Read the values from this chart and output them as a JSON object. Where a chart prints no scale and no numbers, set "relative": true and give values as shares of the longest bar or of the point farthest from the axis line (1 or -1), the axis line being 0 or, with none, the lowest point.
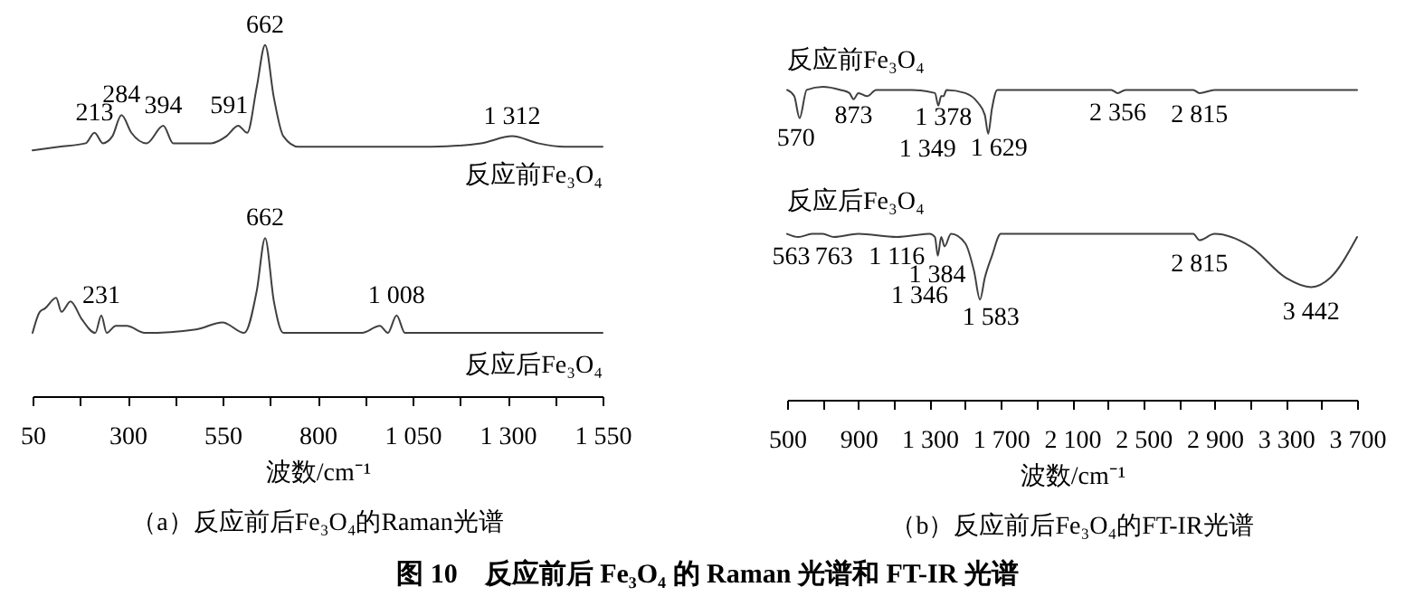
{
  "chart_data": [
    {
      "type": "line",
      "relative": true,
      "title": "（a）反应前后Fe₃O₄的Raman光谱",
      "xlabel": "波数/cm⁻¹",
      "xlim": [
        50,
        1550
      ],
      "xticks": [
        50,
        {
          "value": 175,
          "label": null
        },
        300,
        {
          "value": 425,
          "label": null
        },
        550,
        {
          "value": 675,
          "label": null
        },
        800,
        {
          "value": 925,
          "label": null
        },
        {
          "value": 1050,
          "label": "1 050"
        },
        {
          "value": 1175,
          "label": null
        },
        {
          "value": 1300,
          "label": "1 300"
        },
        {
          "value": 1425,
          "label": null
        },
        {
          "value": 1550,
          "label": "1 550"
        }
      ],
      "grid": false,
      "legend": false,
      "marker": "none",
      "line_style": "solid",
      "series": [
        {
          "name": "反应前Fe₃O₄",
          "color": "#404040",
          "x": [
            50,
            120,
            190,
            213,
            235,
            260,
            284,
            310,
            350,
            394,
            420,
            470,
            520,
            560,
            591,
            615,
            640,
            662,
            685,
            710,
            750,
            900,
            1100,
            1230,
            1312,
            1380,
            1450,
            1550
          ],
          "values": [
            0.7,
            0.71,
            0.72,
            0.75,
            0.72,
            0.74,
            0.8,
            0.75,
            0.72,
            0.77,
            0.72,
            0.72,
            0.72,
            0.74,
            0.77,
            0.75,
            0.88,
            1.0,
            0.85,
            0.74,
            0.71,
            0.71,
            0.71,
            0.72,
            0.74,
            0.72,
            0.71,
            0.71
          ]
        },
        {
          "name": "反应后Fe₃O₄",
          "color": "#404040",
          "x": [
            50,
            69,
            83,
            112,
            126,
            150,
            179,
            215,
            231,
            245,
            269,
            298,
            345,
            480,
            550,
            607,
            640,
            662,
            685,
            710,
            917,
            964,
            985,
            1008,
            1030,
            1200,
            1550
          ],
          "values": [
            0.18,
            0.24,
            0.25,
            0.28,
            0.24,
            0.27,
            0.22,
            0.18,
            0.23,
            0.18,
            0.2,
            0.2,
            0.18,
            0.19,
            0.21,
            0.18,
            0.3,
            0.45,
            0.27,
            0.18,
            0.18,
            0.2,
            0.18,
            0.23,
            0.18,
            0.18,
            0.18
          ]
        }
      ],
      "annotations": [
        {
          "text": "213",
          "x": 213,
          "y": 0.75
        },
        {
          "text": "284",
          "x": 284,
          "y": 0.8
        },
        {
          "text": "394",
          "x": 394,
          "y": 0.77
        },
        {
          "text": "591",
          "x": 591,
          "y": 0.77
        },
        {
          "text": "662",
          "x": 662,
          "y": 1.0
        },
        {
          "text": "1 312",
          "x": 1312,
          "y": 0.74
        },
        {
          "text": "231",
          "x": 231,
          "y": 0.23
        },
        {
          "text": "662",
          "x": 662,
          "y": 0.45
        },
        {
          "text": "1 008",
          "x": 1008,
          "y": 0.23
        }
      ]
    },
    {
      "type": "line",
      "relative": true,
      "title": "（b）反应前后Fe₃O₄的FT-IR光谱",
      "xlabel": "波数/cm⁻¹",
      "xlim": [
        500,
        3700
      ],
      "xticks": [
        500,
        {
          "value": 700,
          "label": null
        },
        900,
        {
          "value": 1100,
          "label": null
        },
        {
          "value": 1300,
          "label": "1 300"
        },
        {
          "value": 1500,
          "label": null
        },
        {
          "value": 1700,
          "label": "1 700"
        },
        {
          "value": 1900,
          "label": null
        },
        {
          "value": 2100,
          "label": "2 100"
        },
        {
          "value": 2300,
          "label": null
        },
        {
          "value": 2500,
          "label": "2 500"
        },
        {
          "value": 2700,
          "label": null
        },
        {
          "value": 2900,
          "label": "2 900"
        },
        {
          "value": 3100,
          "label": null
        },
        {
          "value": 3300,
          "label": "3 300"
        },
        {
          "value": 3500,
          "label": null
        },
        {
          "value": 3700,
          "label": "3 700"
        }
      ],
      "grid": false,
      "legend": false,
      "marker": "none",
      "line_style": "solid",
      "series": [
        {
          "name": "反应前Fe₃O₄",
          "color": "#404040",
          "x": [
            500,
            540,
            570,
            610,
            700,
            800,
            850,
            873,
            900,
            950,
            1000,
            1200,
            1330,
            1349,
            1365,
            1378,
            1395,
            1500,
            1570,
            1610,
            1629,
            1650,
            1680,
            2000,
            2320,
            2356,
            2400,
            2780,
            2815,
            2900,
            3700
          ],
          "values": [
            0.99,
            0.97,
            0.9,
            0.99,
            1.0,
            0.99,
            0.98,
            0.96,
            0.98,
            0.97,
            0.99,
            0.99,
            0.98,
            0.94,
            0.97,
            0.97,
            0.99,
            0.98,
            0.95,
            0.91,
            0.85,
            0.93,
            0.99,
            0.99,
            0.99,
            0.98,
            0.99,
            0.99,
            0.98,
            0.99,
            0.99
          ]
        },
        {
          "name": "反应后Fe₃O₄",
          "color": "#404040",
          "x": [
            500,
            563,
            640,
            700,
            763,
            900,
            1116,
            1300,
            1330,
            1346,
            1365,
            1384,
            1420,
            1500,
            1550,
            1583,
            1610,
            1650,
            1700,
            2000,
            2780,
            2815,
            2900,
            3100,
            3300,
            3442,
            3550,
            3700
          ],
          "values": [
            0.53,
            0.52,
            0.53,
            0.53,
            0.52,
            0.53,
            0.52,
            0.53,
            0.52,
            0.46,
            0.52,
            0.49,
            0.53,
            0.5,
            0.41,
            0.32,
            0.39,
            0.46,
            0.53,
            0.53,
            0.53,
            0.51,
            0.53,
            0.49,
            0.39,
            0.36,
            0.39,
            0.52
          ]
        }
      ],
      "annotations": [
        {
          "text": "570",
          "x": 570,
          "y": 0.9
        },
        {
          "text": "873",
          "x": 873,
          "y": 0.96
        },
        {
          "text": "1 349",
          "x": 1349,
          "y": 0.94
        },
        {
          "text": "1 378",
          "x": 1378,
          "y": 0.97
        },
        {
          "text": "1 629",
          "x": 1629,
          "y": 0.85
        },
        {
          "text": "2 356",
          "x": 2356,
          "y": 0.98
        },
        {
          "text": "2 815",
          "x": 2815,
          "y": 0.98
        },
        {
          "text": "563",
          "x": 563,
          "y": 0.52
        },
        {
          "text": "763",
          "x": 763,
          "y": 0.52
        },
        {
          "text": "1 116",
          "x": 1116,
          "y": 0.52
        },
        {
          "text": "1 346",
          "x": 1346,
          "y": 0.46
        },
        {
          "text": "1 384",
          "x": 1384,
          "y": 0.49
        },
        {
          "text": "1 583",
          "x": 1583,
          "y": 0.32
        },
        {
          "text": "2 815",
          "x": 2815,
          "y": 0.51
        },
        {
          "text": "3 442",
          "x": 3442,
          "y": 0.36
        },
        "图 10　反应前后 Fe₃O₄ 的 Raman 光谱和 FT-IR 光谱"
      ]
    }
  ]
}
